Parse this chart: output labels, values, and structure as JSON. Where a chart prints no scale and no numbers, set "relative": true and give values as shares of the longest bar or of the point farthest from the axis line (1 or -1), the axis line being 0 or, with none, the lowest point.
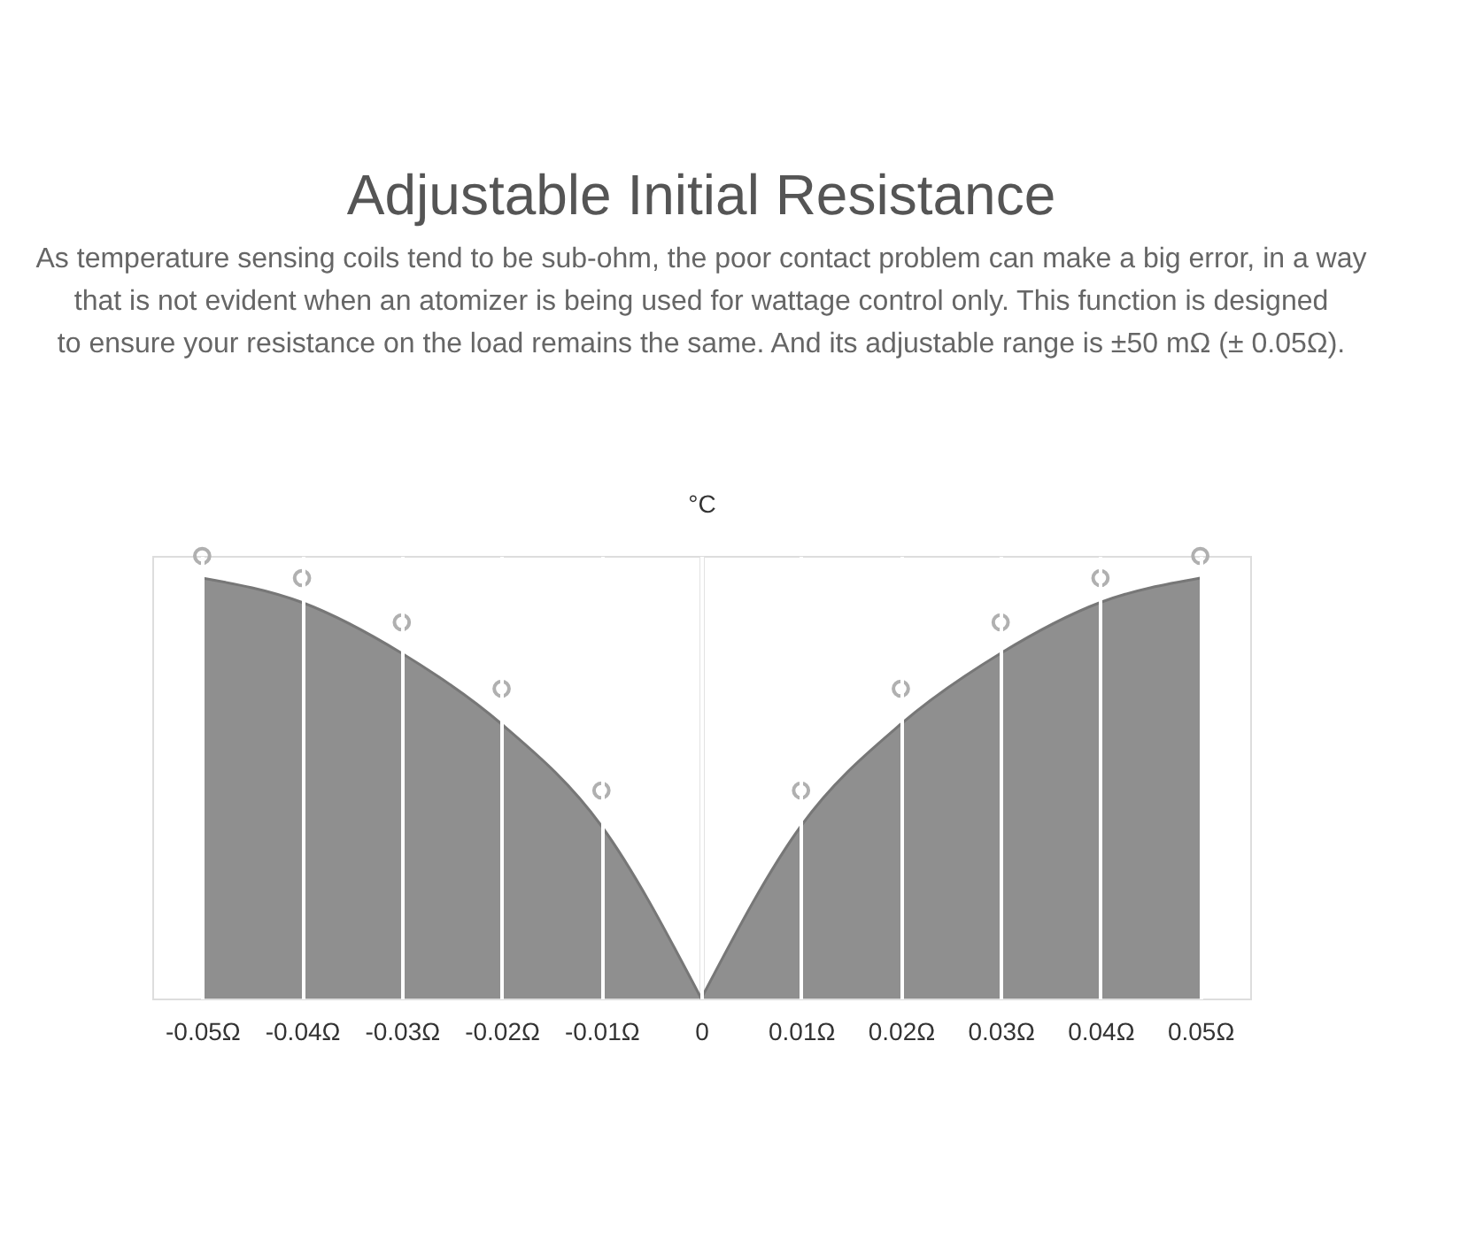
{
  "chart_data": {
    "type": "area",
    "title": "Adjustable Initial Resistance",
    "subtitle": "As temperature sensing coils tend to be sub-ohm, the poor contact problem can make a big error, in a way that is not evident when an atomizer is being used for wattage control only. This function is designed to ensure your resistance on the load remains the same. And its adjustable range is ±50 mΩ (± 0.05Ω).",
    "ylabel": "°C",
    "relative": true,
    "grid": "x",
    "xlim": [
      -0.055,
      0.055
    ],
    "xticks": [
      {
        "value": -0.05,
        "label": "-0.05Ω"
      },
      {
        "value": -0.04,
        "label": "-0.04Ω"
      },
      {
        "value": -0.03,
        "label": "-0.03Ω"
      },
      {
        "value": -0.02,
        "label": "-0.02Ω"
      },
      {
        "value": -0.01,
        "label": "-0.01Ω"
      },
      0,
      {
        "value": 0.01,
        "label": "0.01Ω"
      },
      {
        "value": 0.02,
        "label": "0.02Ω"
      },
      {
        "value": 0.03,
        "label": "0.03Ω"
      },
      {
        "value": 0.04,
        "label": "0.04Ω"
      },
      {
        "value": 0.05,
        "label": "0.05Ω"
      }
    ],
    "series": [
      {
        "color": "#8f8f8f",
        "x": [
          -0.05,
          -0.04,
          -0.03,
          -0.02,
          -0.01,
          0
        ],
        "values": [
          0.95,
          0.895,
          0.78,
          0.62,
          0.39,
          0
        ]
      },
      {
        "color": "#8f8f8f",
        "x": [
          0,
          0.01,
          0.02,
          0.03,
          0.04,
          0.05
        ],
        "values": [
          0,
          0.39,
          0.62,
          0.78,
          0.895,
          0.95
        ]
      },
      {
        "type": "scatter",
        "color": "#b0b0b0",
        "marker": "circle",
        "x": [
          -0.05,
          -0.04,
          -0.03,
          -0.02,
          -0.01,
          0.01,
          0.02,
          0.03,
          0.04,
          0.05
        ],
        "values": [
          1,
          0.95,
          0.85,
          0.7,
          0.47,
          0.47,
          0.7,
          0.85,
          0.95,
          1
        ]
      }
    ]
  }
}
